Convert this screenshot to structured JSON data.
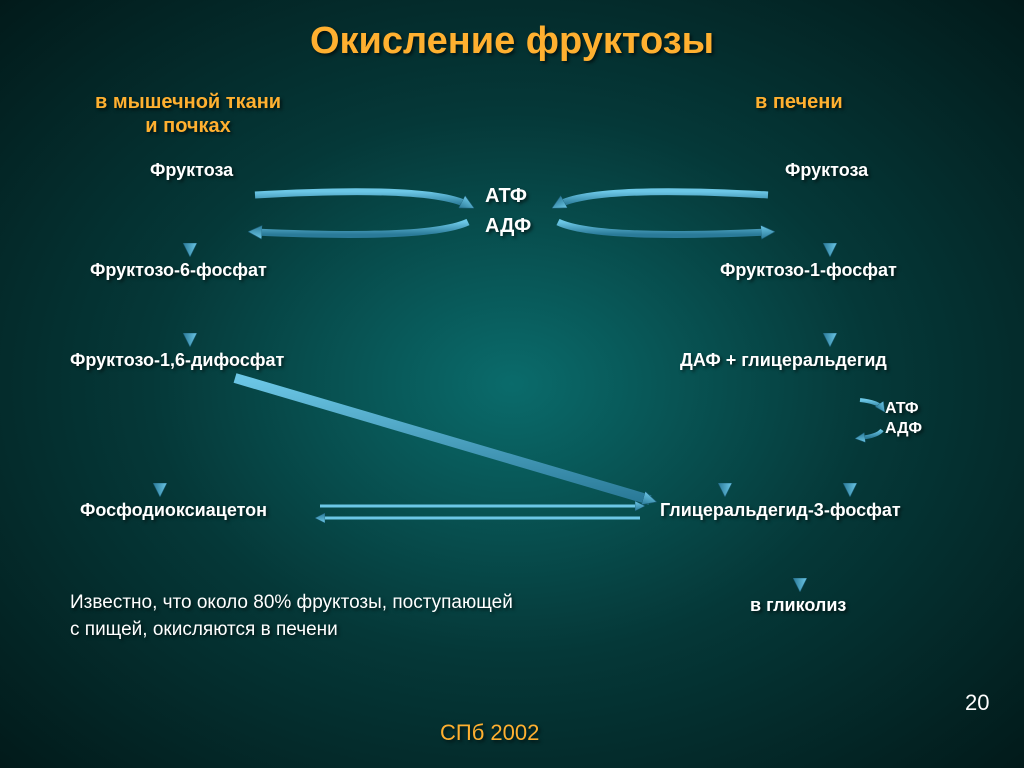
{
  "title": "Окисление фруктозы",
  "left_subtitle": "в мышечной ткани\nи почках",
  "right_subtitle": "в печени",
  "nodes": {
    "l_fructose": "Фруктоза",
    "r_fructose": "Фруктоза",
    "l_f6p": "Фруктозо-6-фосфат",
    "r_f1p": "Фруктозо-1-фосфат",
    "l_f16dp": "Фруктозо-1,6-дифосфат",
    "r_daf": "ДАФ + глицеральдегид",
    "l_pda": "Фосфодиоксиацетон",
    "r_g3p": "Глицеральдегид-3-фосфат",
    "glycolysis": "в гликолиз"
  },
  "center": {
    "atp": "АТФ",
    "adp": "АДФ"
  },
  "small": {
    "atp2": "АТФ",
    "adp2": "АДФ"
  },
  "note_l1": "Известно, что около  80% фруктозы, поступающей",
  "note_l2": "с пищей, окисляются в печени",
  "footer": "СПб 2002",
  "slidenum": "20",
  "colors": {
    "bg_center": "#0a6b6b",
    "bg_edge": "#021a1a",
    "accent": "#ffb030",
    "arrow_fill": "#3aa0c8",
    "arrow_stroke": "#1a5a70",
    "text": "#ffffff"
  }
}
